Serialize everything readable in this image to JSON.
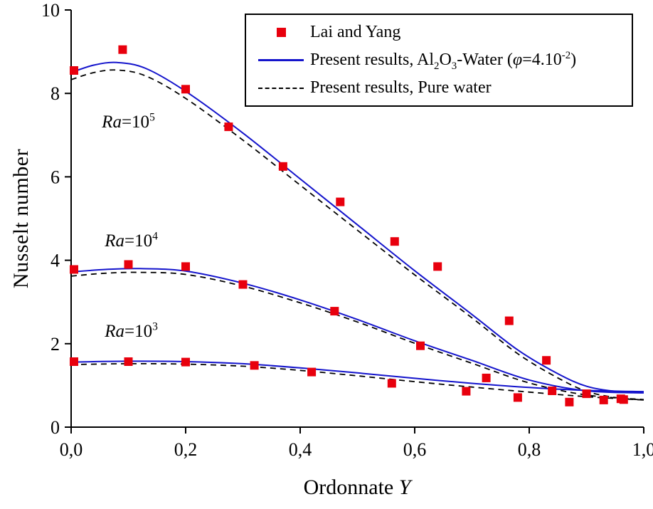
{
  "figure": {
    "background": "#ffffff"
  },
  "chart_data": {
    "type": "line",
    "title": "",
    "xlabel": "Ordonnate Y",
    "xlabel_prefix": "Ordonnate",
    "xlabel_symbol": "Y",
    "ylabel": "Nusselt number",
    "xlim": [
      0,
      1
    ],
    "ylim": [
      0,
      10
    ],
    "grid": false,
    "legend_position": "top-right-inside",
    "xticks": {
      "values": [
        0,
        0.2,
        0.4,
        0.6,
        0.8,
        1.0
      ],
      "labels": [
        "0,0",
        "0,2",
        "0,4",
        "0,6",
        "0,8",
        "1,0"
      ]
    },
    "yticks": {
      "values": [
        0,
        2,
        4,
        6,
        8,
        10
      ],
      "labels": [
        "0",
        "2",
        "4",
        "6",
        "8",
        "10"
      ]
    },
    "colors": {
      "experiment": "#e8000d",
      "nanofluid": "#1414cc",
      "pure_water": "#000000"
    },
    "annotations": [
      {
        "id": "ra-1e5",
        "x": 0.1,
        "y": 7.3,
        "parts": [
          {
            "t": "Ra",
            "s": "i"
          },
          {
            "t": "=10"
          },
          {
            "t": "5",
            "s": "sup"
          }
        ]
      },
      {
        "id": "ra-1e4",
        "x": 0.105,
        "y": 4.45,
        "parts": [
          {
            "t": "Ra",
            "s": "i"
          },
          {
            "t": "=10"
          },
          {
            "t": "4",
            "s": "sup"
          }
        ]
      },
      {
        "id": "ra-1e3",
        "x": 0.105,
        "y": 2.28,
        "parts": [
          {
            "t": "Ra",
            "s": "i"
          },
          {
            "t": "=10"
          },
          {
            "t": "3",
            "s": "sup"
          }
        ]
      }
    ],
    "legend": [
      {
        "id": "lai-and-yang",
        "marker": "square",
        "color": "#e8000d",
        "parts": [
          {
            "t": "Lai and Yang"
          }
        ]
      },
      {
        "id": "present-nanofluid",
        "marker": "solid-line",
        "color": "#1414cc",
        "parts": [
          {
            "t": "Present results, Al"
          },
          {
            "t": "2",
            "s": "sub"
          },
          {
            "t": "O"
          },
          {
            "t": "3",
            "s": "sub"
          },
          {
            "t": "-Water ("
          },
          {
            "t": "φ",
            "s": "i"
          },
          {
            "t": "=4.10"
          },
          {
            "t": "-2",
            "s": "sup"
          },
          {
            "t": ")"
          }
        ]
      },
      {
        "id": "present-pure-water",
        "marker": "dashed-line",
        "color": "#000000",
        "parts": [
          {
            "t": "Present results, Pure water"
          }
        ]
      }
    ],
    "series": [
      {
        "id": "nanofluid-ra1e5",
        "group": "Ra=10^5",
        "type": "line",
        "style": "solid",
        "color": "#1414cc",
        "x": [
          0,
          0.04,
          0.08,
          0.13,
          0.2,
          0.3,
          0.4,
          0.5,
          0.6,
          0.7,
          0.78,
          0.85,
          0.9,
          0.95,
          1.0
        ],
        "y": [
          8.5,
          8.68,
          8.74,
          8.6,
          8.05,
          7.05,
          5.95,
          4.85,
          3.75,
          2.7,
          1.85,
          1.28,
          0.98,
          0.86,
          0.85
        ]
      },
      {
        "id": "purewater-ra1e5",
        "group": "Ra=10^5",
        "type": "line",
        "style": "dashed",
        "color": "#000000",
        "x": [
          0,
          0.04,
          0.08,
          0.13,
          0.2,
          0.3,
          0.4,
          0.5,
          0.6,
          0.7,
          0.78,
          0.85,
          0.9,
          0.95,
          1.0
        ],
        "y": [
          8.33,
          8.5,
          8.56,
          8.42,
          7.88,
          6.88,
          5.8,
          4.72,
          3.65,
          2.62,
          1.76,
          1.18,
          0.86,
          0.71,
          0.65
        ]
      },
      {
        "id": "nanofluid-ra1e4",
        "group": "Ra=10^4",
        "type": "line",
        "style": "solid",
        "color": "#1414cc",
        "x": [
          0,
          0.06,
          0.12,
          0.2,
          0.3,
          0.4,
          0.5,
          0.6,
          0.7,
          0.8,
          0.9,
          1.0
        ],
        "y": [
          3.72,
          3.78,
          3.8,
          3.74,
          3.45,
          3.05,
          2.58,
          2.07,
          1.6,
          1.13,
          0.87,
          0.82
        ]
      },
      {
        "id": "purewater-ra1e4",
        "group": "Ra=10^4",
        "type": "line",
        "style": "dashed",
        "color": "#000000",
        "x": [
          0,
          0.06,
          0.12,
          0.2,
          0.3,
          0.4,
          0.5,
          0.6,
          0.7,
          0.8,
          0.9,
          1.0
        ],
        "y": [
          3.62,
          3.69,
          3.71,
          3.66,
          3.38,
          2.98,
          2.52,
          2.01,
          1.53,
          1.06,
          0.77,
          0.66
        ]
      },
      {
        "id": "nanofluid-ra1e3",
        "group": "Ra=10^3",
        "type": "line",
        "style": "solid",
        "color": "#1414cc",
        "x": [
          0,
          0.1,
          0.2,
          0.3,
          0.4,
          0.5,
          0.6,
          0.7,
          0.8,
          0.9,
          1.0
        ],
        "y": [
          1.56,
          1.58,
          1.57,
          1.52,
          1.42,
          1.3,
          1.17,
          1.05,
          0.95,
          0.88,
          0.85
        ]
      },
      {
        "id": "purewater-ra1e3",
        "group": "Ra=10^3",
        "type": "line",
        "style": "dashed",
        "color": "#000000",
        "x": [
          0,
          0.1,
          0.2,
          0.3,
          0.4,
          0.5,
          0.6,
          0.7,
          0.8,
          0.9,
          1.0
        ],
        "y": [
          1.5,
          1.52,
          1.51,
          1.46,
          1.36,
          1.23,
          1.09,
          0.96,
          0.84,
          0.73,
          0.65
        ]
      },
      {
        "id": "lai-yang-ra1e5",
        "group": "Ra=10^5",
        "type": "scatter",
        "marker": "square",
        "color": "#e8000d",
        "x": [
          0.005,
          0.09,
          0.2,
          0.275,
          0.37,
          0.47,
          0.565,
          0.64,
          0.765,
          0.83,
          0.9,
          0.96
        ],
        "y": [
          8.55,
          9.05,
          8.1,
          7.2,
          6.25,
          5.4,
          4.45,
          3.85,
          2.55,
          1.6,
          0.8,
          0.68
        ]
      },
      {
        "id": "lai-yang-ra1e4",
        "group": "Ra=10^4",
        "type": "scatter",
        "marker": "square",
        "color": "#e8000d",
        "x": [
          0.005,
          0.1,
          0.2,
          0.3,
          0.46,
          0.61,
          0.725,
          0.84,
          0.93
        ],
        "y": [
          3.78,
          3.9,
          3.85,
          3.42,
          2.78,
          1.95,
          1.18,
          0.87,
          0.65
        ]
      },
      {
        "id": "lai-yang-ra1e3",
        "group": "Ra=10^3",
        "type": "scatter",
        "marker": "square",
        "color": "#e8000d",
        "x": [
          0.005,
          0.1,
          0.2,
          0.32,
          0.42,
          0.56,
          0.69,
          0.78,
          0.87,
          0.965
        ],
        "y": [
          1.57,
          1.57,
          1.56,
          1.48,
          1.32,
          1.05,
          0.86,
          0.71,
          0.6,
          0.66
        ]
      }
    ]
  }
}
